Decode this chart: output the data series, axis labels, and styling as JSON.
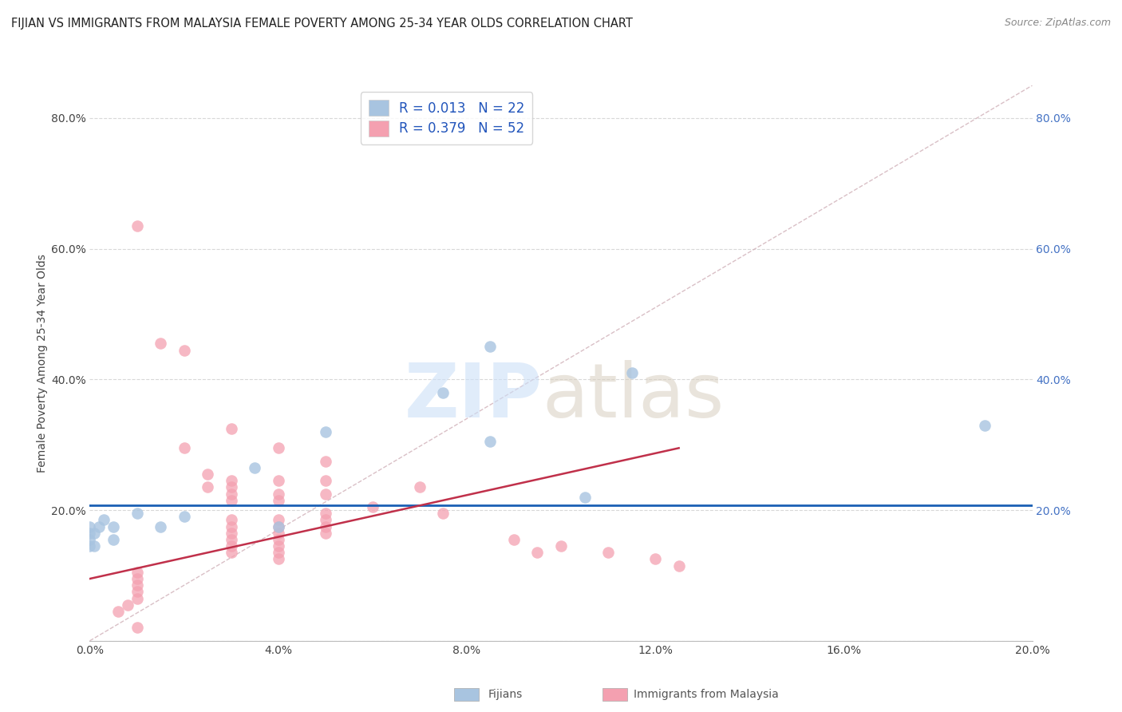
{
  "title": "FIJIAN VS IMMIGRANTS FROM MALAYSIA FEMALE POVERTY AMONG 25-34 YEAR OLDS CORRELATION CHART",
  "source": "Source: ZipAtlas.com",
  "ylabel": "Female Poverty Among 25-34 Year Olds",
  "xlim": [
    0.0,
    0.2
  ],
  "ylim": [
    0.0,
    0.85
  ],
  "x_ticks": [
    0.0,
    0.04,
    0.08,
    0.12,
    0.16,
    0.2
  ],
  "y_ticks": [
    0.0,
    0.2,
    0.4,
    0.6,
    0.8
  ],
  "fijians_x": [
    0.19,
    0.085,
    0.075,
    0.115,
    0.105,
    0.085,
    0.05,
    0.04,
    0.035,
    0.02,
    0.015,
    0.01,
    0.005,
    0.005,
    0.003,
    0.002,
    0.001,
    0.001,
    0.0,
    0.0,
    0.0,
    0.0
  ],
  "fijians_y": [
    0.33,
    0.45,
    0.38,
    0.41,
    0.22,
    0.305,
    0.32,
    0.175,
    0.265,
    0.19,
    0.175,
    0.195,
    0.175,
    0.155,
    0.185,
    0.175,
    0.145,
    0.165,
    0.155,
    0.175,
    0.145,
    0.165
  ],
  "malaysia_x": [
    0.01,
    0.01,
    0.015,
    0.02,
    0.02,
    0.025,
    0.025,
    0.03,
    0.03,
    0.03,
    0.03,
    0.03,
    0.03,
    0.03,
    0.03,
    0.03,
    0.03,
    0.03,
    0.04,
    0.04,
    0.04,
    0.04,
    0.04,
    0.04,
    0.04,
    0.04,
    0.04,
    0.04,
    0.04,
    0.05,
    0.05,
    0.05,
    0.05,
    0.05,
    0.05,
    0.05,
    0.06,
    0.07,
    0.075,
    0.09,
    0.095,
    0.1,
    0.11,
    0.12,
    0.125,
    0.01,
    0.01,
    0.01,
    0.01,
    0.01,
    0.008,
    0.006
  ],
  "malaysia_y": [
    0.635,
    0.02,
    0.455,
    0.445,
    0.295,
    0.255,
    0.235,
    0.325,
    0.245,
    0.235,
    0.225,
    0.215,
    0.185,
    0.175,
    0.165,
    0.155,
    0.145,
    0.135,
    0.295,
    0.245,
    0.225,
    0.215,
    0.185,
    0.175,
    0.165,
    0.155,
    0.145,
    0.135,
    0.125,
    0.275,
    0.245,
    0.225,
    0.195,
    0.185,
    0.175,
    0.165,
    0.205,
    0.235,
    0.195,
    0.155,
    0.135,
    0.145,
    0.135,
    0.125,
    0.115,
    0.105,
    0.095,
    0.085,
    0.075,
    0.065,
    0.055,
    0.045
  ],
  "fijian_color": "#a8c4e0",
  "malaysia_color": "#f4a0b0",
  "fijian_R": 0.013,
  "fijian_N": 22,
  "malaysia_R": 0.379,
  "malaysia_N": 52,
  "regression_blue_color": "#1a5fb4",
  "regression_pink_color": "#c0304a",
  "ref_line_color": "#c8b8b8",
  "grid_color": "#d8d8d8",
  "background_color": "#ffffff",
  "blue_hline_y": 0.208,
  "pink_line_x0": 0.0,
  "pink_line_x1": 0.125,
  "pink_line_y0": 0.095,
  "pink_line_y1": 0.295
}
